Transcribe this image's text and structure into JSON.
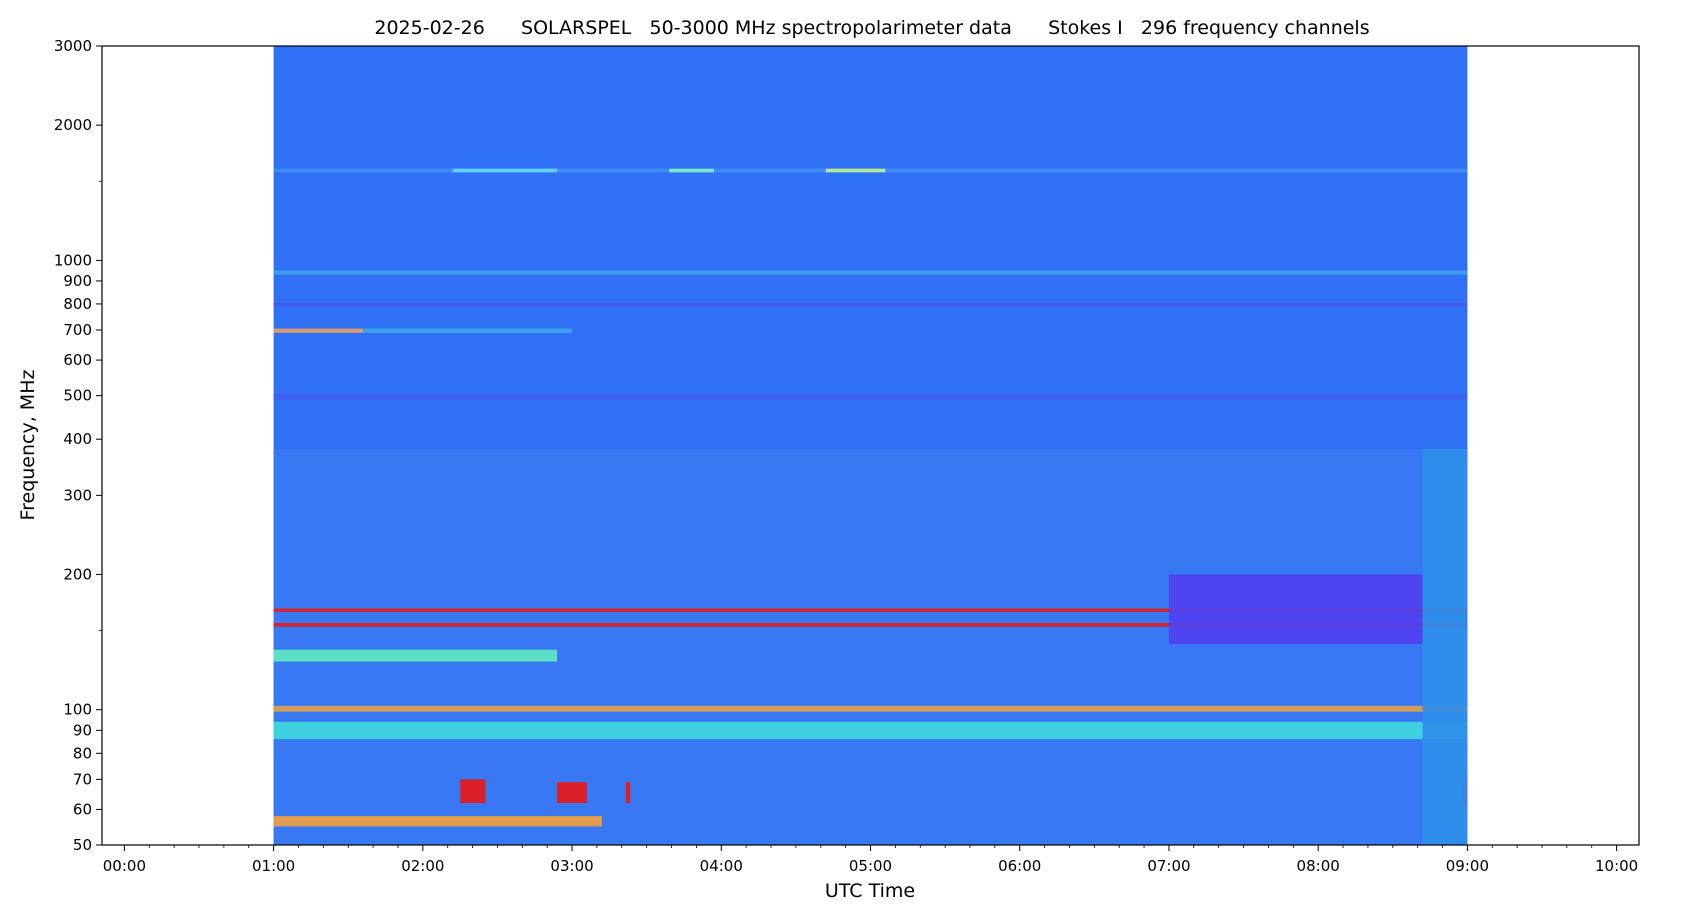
{
  "chart_data": {
    "type": "heatmap",
    "title": "2025-02-26      SOLARSPEL   50-3000 MHz spectropolarimeter data      Stokes I   296 frequency channels",
    "xlabel": "UTC Time",
    "ylabel": "Frequency, MHz",
    "x_range_hours": [
      -0.15,
      10.15
    ],
    "y_range_mhz": [
      50,
      3000
    ],
    "y_scale": "log",
    "grid": false,
    "legend": "none",
    "x_ticks": [
      {
        "value": 0,
        "label": "00:00"
      },
      {
        "value": 1,
        "label": "01:00"
      },
      {
        "value": 2,
        "label": "02:00"
      },
      {
        "value": 3,
        "label": "03:00"
      },
      {
        "value": 4,
        "label": "04:00"
      },
      {
        "value": 5,
        "label": "05:00"
      },
      {
        "value": 6,
        "label": "06:00"
      },
      {
        "value": 7,
        "label": "07:00"
      },
      {
        "value": 8,
        "label": "08:00"
      },
      {
        "value": 9,
        "label": "09:00"
      },
      {
        "value": 10,
        "label": "10:00"
      }
    ],
    "y_ticks": [
      {
        "value": 50,
        "label": "50"
      },
      {
        "value": 60,
        "label": "60"
      },
      {
        "value": 70,
        "label": "70"
      },
      {
        "value": 80,
        "label": "80"
      },
      {
        "value": 90,
        "label": "90"
      },
      {
        "value": 100,
        "label": "100"
      },
      {
        "value": 200,
        "label": "200"
      },
      {
        "value": 300,
        "label": "300"
      },
      {
        "value": 400,
        "label": "400"
      },
      {
        "value": 500,
        "label": "500"
      },
      {
        "value": 600,
        "label": "600"
      },
      {
        "value": 700,
        "label": "700"
      },
      {
        "value": 800,
        "label": "800"
      },
      {
        "value": 900,
        "label": "900"
      },
      {
        "value": 1000,
        "label": "1000"
      },
      {
        "value": 2000,
        "label": "2000"
      },
      {
        "value": 3000,
        "label": "3000"
      }
    ],
    "data_span_hours": [
      1.0,
      9.0
    ],
    "colormap": "rainbow",
    "background_color": "#3070f5",
    "bands": [
      {
        "f_low": 1570,
        "f_high": 1600,
        "t_start": 1.0,
        "t_end": 9.0,
        "color": "#3f8ef5"
      },
      {
        "f_low": 1570,
        "f_high": 1600,
        "t_start": 2.2,
        "t_end": 2.9,
        "color": "#5fd8ea"
      },
      {
        "f_low": 1570,
        "f_high": 1600,
        "t_start": 3.65,
        "t_end": 3.95,
        "color": "#7ff0c8"
      },
      {
        "f_low": 1570,
        "f_high": 1600,
        "t_start": 4.7,
        "t_end": 5.1,
        "color": "#b8f090"
      },
      {
        "f_low": 930,
        "f_high": 950,
        "t_start": 1.0,
        "t_end": 9.0,
        "color": "#3da0ef"
      },
      {
        "f_low": 790,
        "f_high": 805,
        "t_start": 1.0,
        "t_end": 9.0,
        "color": "#4a58f0"
      },
      {
        "f_low": 690,
        "f_high": 705,
        "t_start": 1.0,
        "t_end": 1.6,
        "color": "#e8a060"
      },
      {
        "f_low": 690,
        "f_high": 705,
        "t_start": 1.6,
        "t_end": 3.0,
        "color": "#3da8ef"
      },
      {
        "f_low": 490,
        "f_high": 505,
        "t_start": 1.0,
        "t_end": 9.0,
        "color": "#4060f0"
      },
      {
        "f_low": 50,
        "f_high": 380,
        "t_start": 1.0,
        "t_end": 9.0,
        "color": "#3a78f2"
      },
      {
        "f_low": 165,
        "f_high": 168,
        "t_start": 1.0,
        "t_end": 9.0,
        "color": "#e02020"
      },
      {
        "f_low": 153,
        "f_high": 156,
        "t_start": 1.0,
        "t_end": 9.0,
        "color": "#e02020"
      },
      {
        "f_low": 128,
        "f_high": 136,
        "t_start": 1.0,
        "t_end": 2.9,
        "color": "#60e8c0"
      },
      {
        "f_low": 99,
        "f_high": 102,
        "t_start": 1.0,
        "t_end": 9.0,
        "color": "#e0a050"
      },
      {
        "f_low": 86,
        "f_high": 94,
        "t_start": 1.0,
        "t_end": 9.0,
        "color": "#40d8e0"
      },
      {
        "f_low": 55,
        "f_high": 58,
        "t_start": 1.0,
        "t_end": 3.2,
        "color": "#f0a040"
      },
      {
        "f_low": 62,
        "f_high": 70,
        "t_start": 2.25,
        "t_end": 2.42,
        "color": "#e81818"
      },
      {
        "f_low": 62,
        "f_high": 69,
        "t_start": 2.9,
        "t_end": 3.1,
        "color": "#e81818"
      },
      {
        "f_low": 62,
        "f_high": 69,
        "t_start": 3.36,
        "t_end": 3.39,
        "color": "#e81818"
      },
      {
        "f_low": 62,
        "f_high": 69,
        "t_start": 8.97,
        "t_end": 9.0,
        "color": "#e81818"
      },
      {
        "f_low": 50,
        "f_high": 380,
        "t_start": 8.7,
        "t_end": 9.0,
        "color": "#2f8fea"
      },
      {
        "f_low": 140,
        "f_high": 200,
        "t_start": 7.0,
        "t_end": 8.7,
        "color": "#5040f0"
      }
    ]
  }
}
